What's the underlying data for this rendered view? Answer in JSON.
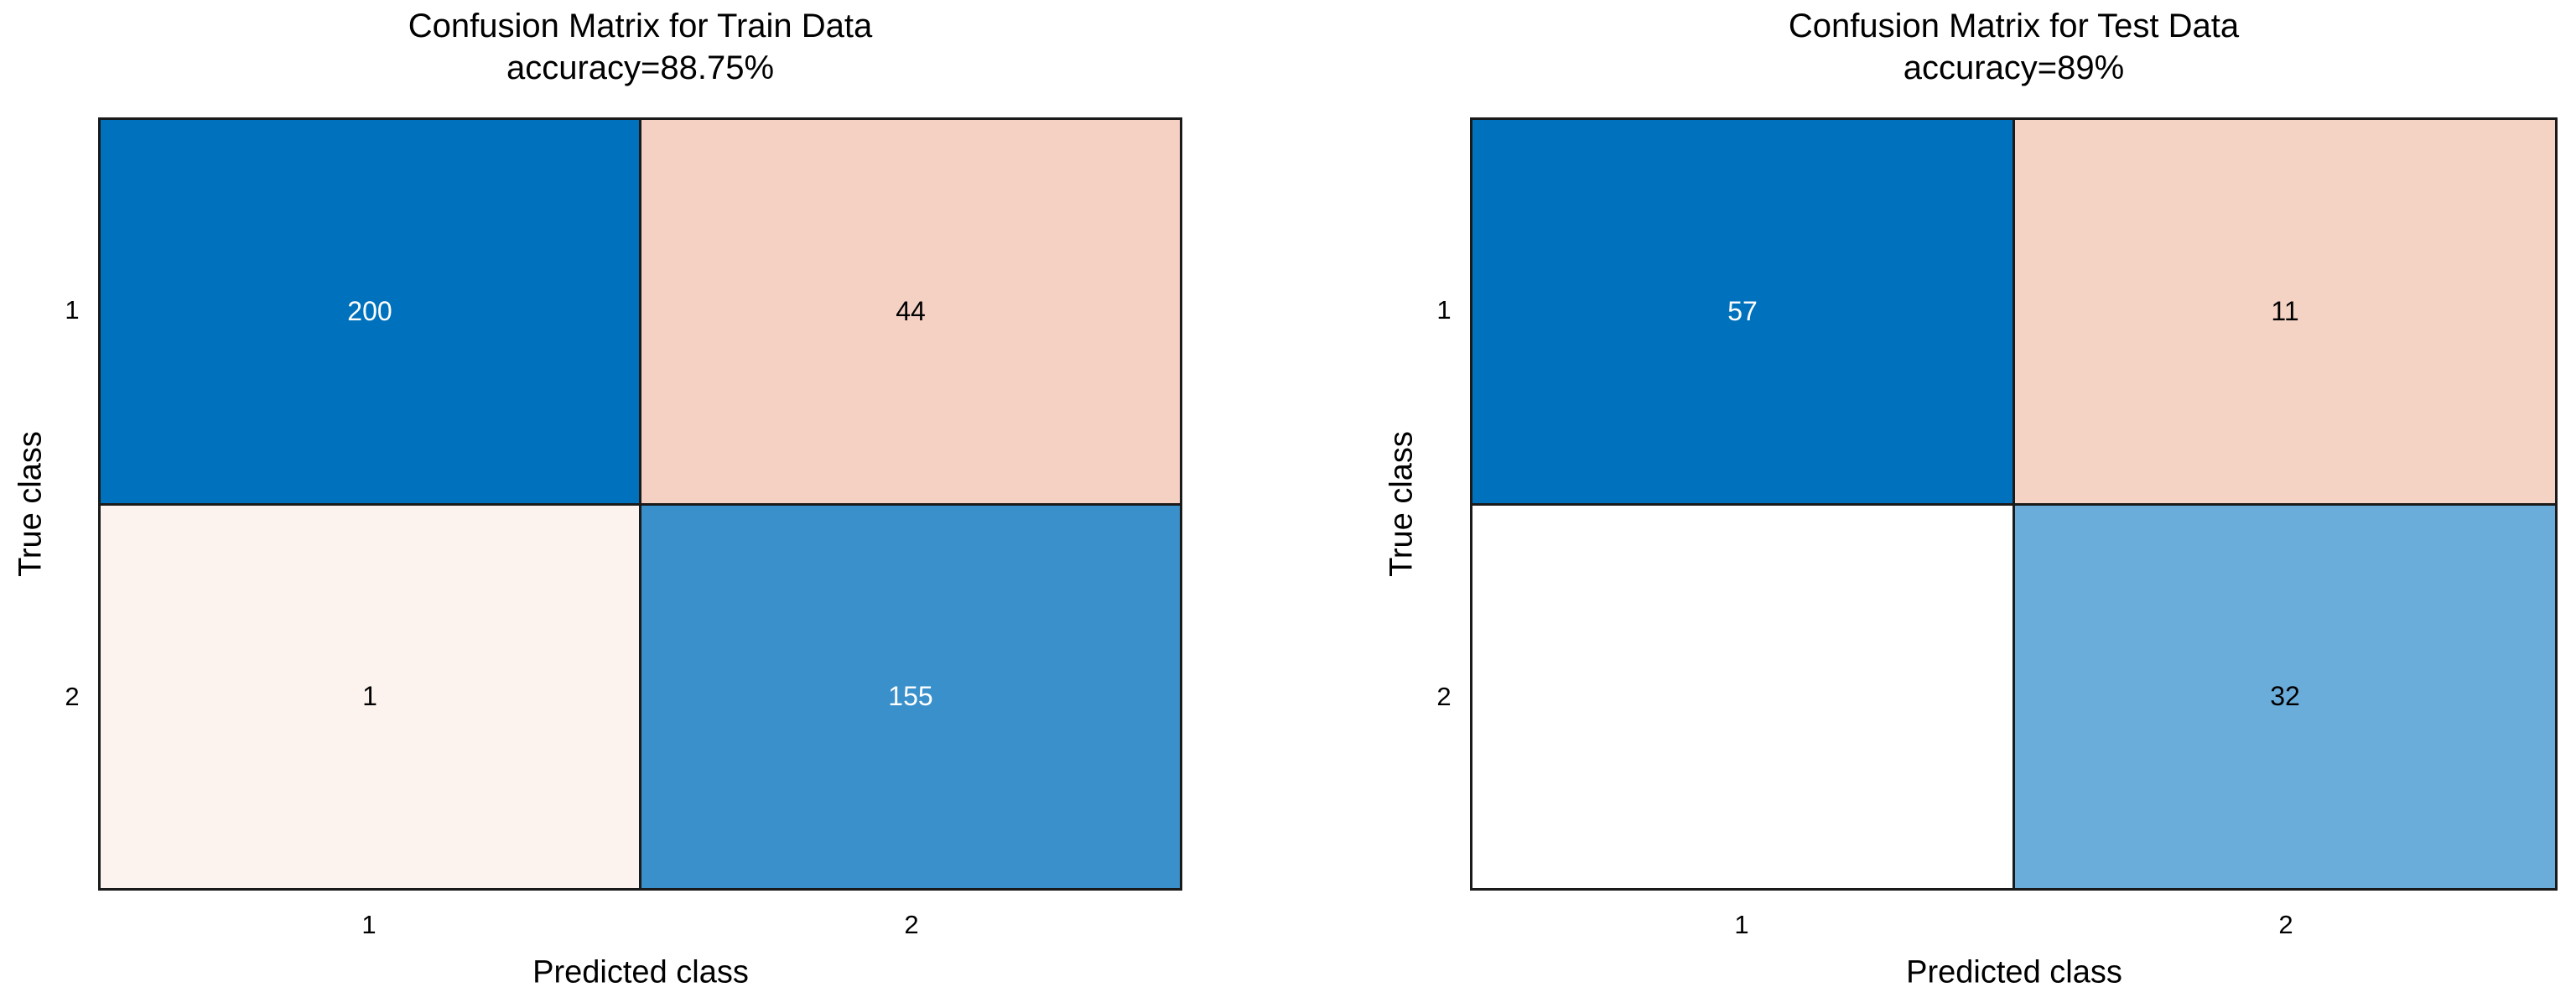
{
  "figure": {
    "background": "#ffffff",
    "grid_line_color": "#1a1a1a",
    "diagonal_color_max": "#0072bd",
    "offdiagonal_color_max": "#f4d1c3"
  },
  "chart_data": [
    {
      "type": "heatmap",
      "title": "Confusion Matrix for Train Data",
      "subtitle": "accuracy=88.75%",
      "xlabel": "Predicted class",
      "ylabel": "True class",
      "x_ticks": [
        "1",
        "2"
      ],
      "y_ticks": [
        "1",
        "2"
      ],
      "matrix": [
        [
          200,
          44
        ],
        [
          1,
          155
        ]
      ],
      "cells": [
        {
          "label": "200",
          "bg": "#0072bd",
          "fg": "#ffffff"
        },
        {
          "label": "44",
          "bg": "#f4d1c3",
          "fg": "#000000"
        },
        {
          "label": "1",
          "bg": "#fdf3ee",
          "fg": "#000000"
        },
        {
          "label": "155",
          "bg": "#3a90cb",
          "fg": "#ffffff"
        }
      ]
    },
    {
      "type": "heatmap",
      "title": "Confusion Matrix for Test Data",
      "subtitle": "accuracy=89%",
      "xlabel": "Predicted class",
      "ylabel": "True class",
      "x_ticks": [
        "1",
        "2"
      ],
      "y_ticks": [
        "1",
        "2"
      ],
      "matrix": [
        [
          57,
          11
        ],
        [
          0,
          32
        ]
      ],
      "cells": [
        {
          "label": "57",
          "bg": "#0072bd",
          "fg": "#ffffff"
        },
        {
          "label": "11",
          "bg": "#f4d2c4",
          "fg": "#000000"
        },
        {
          "label": "",
          "bg": "#ffffff",
          "fg": "#000000"
        },
        {
          "label": "32",
          "bg": "#6badda",
          "fg": "#000000"
        }
      ]
    }
  ]
}
